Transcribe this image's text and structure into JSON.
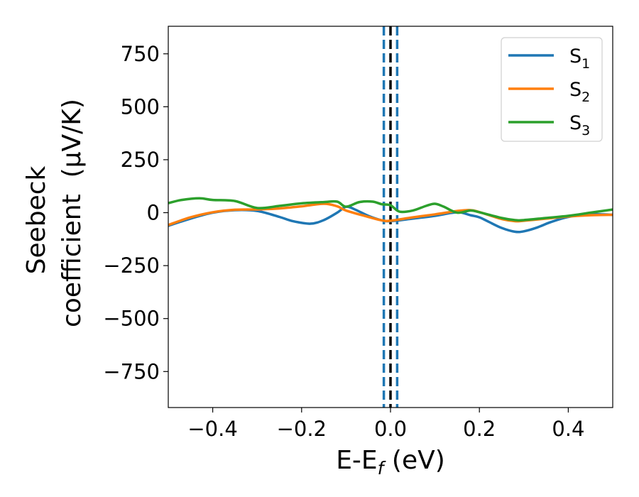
{
  "chart_data": {
    "type": "line",
    "xlabel": {
      "main": "E-E",
      "sub": "f",
      "tail": " (eV)"
    },
    "ylabel": {
      "line1": "Seebeck",
      "line2": "coefficient  (μV/K)"
    },
    "xlim": [
      -0.5,
      0.5
    ],
    "ylim": [
      -920,
      880
    ],
    "xticks": [
      -0.4,
      -0.2,
      0.0,
      0.2,
      0.4
    ],
    "xtick_labels": [
      "−0.4",
      "−0.2",
      "0.0",
      "0.2",
      "0.4"
    ],
    "yticks": [
      750,
      500,
      250,
      0,
      -250,
      -500,
      -750
    ],
    "ytick_labels": [
      "750",
      "500",
      "250",
      "0",
      "−250",
      "−500",
      "−750"
    ],
    "legend_position": "top-right",
    "grid": false,
    "series": [
      {
        "name": {
          "main": "S",
          "sub": "1"
        },
        "color": "#1f77b4",
        "x": [
          -0.5,
          -0.45,
          -0.4,
          -0.35,
          -0.3,
          -0.25,
          -0.22,
          -0.18,
          -0.15,
          -0.12,
          -0.1,
          -0.08,
          -0.05,
          -0.02,
          0.0,
          0.05,
          0.1,
          0.15,
          0.18,
          0.2,
          0.22,
          0.25,
          0.28,
          0.3,
          0.33,
          0.36,
          0.4,
          0.45,
          0.5
        ],
        "y": [
          -62,
          -28,
          0,
          12,
          8,
          -20,
          -40,
          -52,
          -35,
          0,
          28,
          15,
          -15,
          -36,
          -40,
          -28,
          -15,
          2,
          -12,
          -22,
          -42,
          -72,
          -90,
          -88,
          -70,
          -45,
          -20,
          -8,
          -10
        ]
      },
      {
        "name": {
          "main": "S",
          "sub": "2"
        },
        "color": "#ff7f0e",
        "x": [
          -0.5,
          -0.45,
          -0.4,
          -0.35,
          -0.3,
          -0.25,
          -0.2,
          -0.15,
          -0.12,
          -0.1,
          -0.05,
          -0.02,
          0.0,
          0.05,
          0.1,
          0.15,
          0.18,
          0.2,
          0.25,
          0.28,
          0.3,
          0.35,
          0.4,
          0.45,
          0.5
        ],
        "y": [
          -58,
          -22,
          2,
          14,
          15,
          20,
          30,
          42,
          30,
          10,
          -20,
          -36,
          -38,
          -22,
          -8,
          8,
          12,
          3,
          -30,
          -40,
          -38,
          -28,
          -18,
          -12,
          -10
        ]
      },
      {
        "name": {
          "main": "S",
          "sub": "3"
        },
        "color": "#2ca02c",
        "x": [
          -0.5,
          -0.47,
          -0.43,
          -0.4,
          -0.35,
          -0.3,
          -0.25,
          -0.2,
          -0.15,
          -0.12,
          -0.1,
          -0.07,
          -0.04,
          -0.02,
          0.0,
          0.02,
          0.05,
          0.08,
          0.1,
          0.12,
          0.15,
          0.18,
          0.2,
          0.25,
          0.28,
          0.3,
          0.35,
          0.4,
          0.45,
          0.5
        ],
        "y": [
          45,
          60,
          68,
          60,
          55,
          22,
          32,
          44,
          50,
          52,
          28,
          50,
          52,
          40,
          35,
          5,
          10,
          32,
          42,
          28,
          0,
          10,
          2,
          -25,
          -35,
          -35,
          -25,
          -15,
          0,
          15
        ]
      }
    ],
    "reference_lines": [
      {
        "x": -0.015,
        "color": "#1f77b4",
        "style": "dashed"
      },
      {
        "x": 0.0,
        "color": "#000000",
        "style": "dashed"
      },
      {
        "x": 0.015,
        "color": "#1f77b4",
        "style": "dashed"
      }
    ]
  }
}
